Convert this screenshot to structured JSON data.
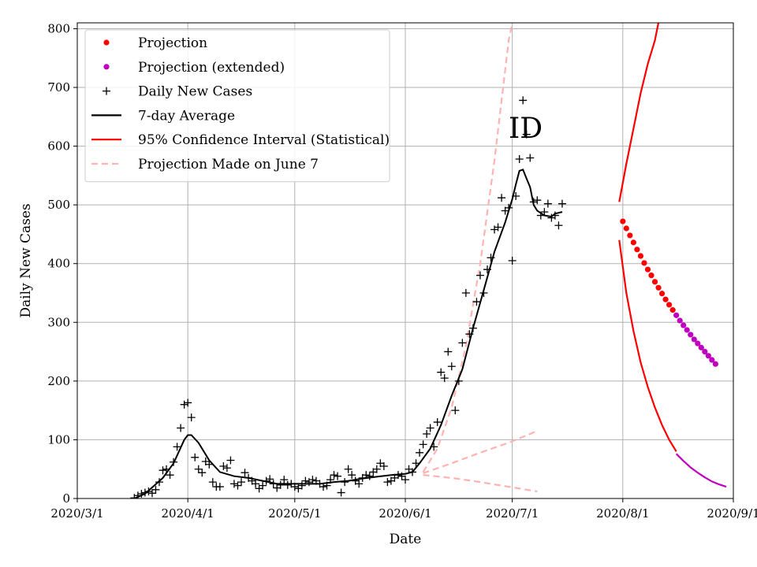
{
  "chart_data": {
    "type": "scatter",
    "title": "",
    "xlabel": "Date",
    "ylabel": "Daily New Cases",
    "annotation": "ID",
    "grid": true,
    "legend_placement": "top-left",
    "xlim": [
      "2020/3/1",
      "2020/9/1"
    ],
    "ylim": [
      0,
      810
    ],
    "x_ticks": [
      "2020/3/1",
      "2020/4/1",
      "2020/5/1",
      "2020/6/1",
      "2020/7/1",
      "2020/8/1",
      "2020/9/1"
    ],
    "y_ticks": [
      0,
      100,
      200,
      300,
      400,
      500,
      600,
      700,
      800
    ],
    "colors": {
      "projection": "#ff0000",
      "projection_extended": "#bf00bf",
      "daily": "#000000",
      "average": "#000000",
      "ci": "#ff0000",
      "june7": "#ffb2b2"
    },
    "legend": [
      {
        "label": "Projection",
        "kind": "dot",
        "color": "#ff0000"
      },
      {
        "label": "Projection (extended)",
        "kind": "dot",
        "color": "#bf00bf"
      },
      {
        "label": "Daily New Cases",
        "kind": "plus",
        "color": "#000000"
      },
      {
        "label": "7-day Average",
        "kind": "line",
        "color": "#000000"
      },
      {
        "label": "95% Confidence Interval (Statistical)",
        "kind": "line",
        "color": "#ff0000"
      },
      {
        "label": "Projection Made on June 7",
        "kind": "dash",
        "color": "#ffb2b2"
      }
    ],
    "series": [
      {
        "name": "Daily New Cases",
        "points": [
          [
            "2020-03-17",
            1
          ],
          [
            "2020-03-18",
            5
          ],
          [
            "2020-03-19",
            8
          ],
          [
            "2020-03-20",
            10
          ],
          [
            "2020-03-21",
            12
          ],
          [
            "2020-03-22",
            9
          ],
          [
            "2020-03-23",
            15
          ],
          [
            "2020-03-24",
            28
          ],
          [
            "2020-03-25",
            48
          ],
          [
            "2020-03-26",
            50
          ],
          [
            "2020-03-27",
            40
          ],
          [
            "2020-03-28",
            62
          ],
          [
            "2020-03-29",
            88
          ],
          [
            "2020-03-30",
            120
          ],
          [
            "2020-03-31",
            160
          ],
          [
            "2020-04-01",
            163
          ],
          [
            "2020-04-02",
            138
          ],
          [
            "2020-04-03",
            70
          ],
          [
            "2020-04-04",
            50
          ],
          [
            "2020-04-05",
            44
          ],
          [
            "2020-04-06",
            63
          ],
          [
            "2020-04-07",
            58
          ],
          [
            "2020-04-08",
            28
          ],
          [
            "2020-04-09",
            20
          ],
          [
            "2020-04-10",
            20
          ],
          [
            "2020-04-11",
            55
          ],
          [
            "2020-04-12",
            52
          ],
          [
            "2020-04-13",
            65
          ],
          [
            "2020-04-14",
            25
          ],
          [
            "2020-04-15",
            22
          ],
          [
            "2020-04-16",
            28
          ],
          [
            "2020-04-17",
            44
          ],
          [
            "2020-04-18",
            35
          ],
          [
            "2020-04-19",
            30
          ],
          [
            "2020-04-20",
            25
          ],
          [
            "2020-04-21",
            17
          ],
          [
            "2020-04-22",
            22
          ],
          [
            "2020-04-23",
            30
          ],
          [
            "2020-04-24",
            33
          ],
          [
            "2020-04-25",
            25
          ],
          [
            "2020-04-26",
            18
          ],
          [
            "2020-04-27",
            23
          ],
          [
            "2020-04-28",
            32
          ],
          [
            "2020-04-29",
            23
          ],
          [
            "2020-04-30",
            25
          ],
          [
            "2020-05-01",
            20
          ],
          [
            "2020-05-02",
            17
          ],
          [
            "2020-05-03",
            22
          ],
          [
            "2020-05-04",
            30
          ],
          [
            "2020-05-05",
            28
          ],
          [
            "2020-05-06",
            32
          ],
          [
            "2020-05-07",
            30
          ],
          [
            "2020-05-08",
            25
          ],
          [
            "2020-05-09",
            20
          ],
          [
            "2020-05-10",
            22
          ],
          [
            "2020-05-11",
            32
          ],
          [
            "2020-05-12",
            40
          ],
          [
            "2020-05-13",
            38
          ],
          [
            "2020-05-14",
            10
          ],
          [
            "2020-05-15",
            28
          ],
          [
            "2020-05-16",
            50
          ],
          [
            "2020-05-17",
            40
          ],
          [
            "2020-05-18",
            30
          ],
          [
            "2020-05-19",
            25
          ],
          [
            "2020-05-20",
            35
          ],
          [
            "2020-05-21",
            40
          ],
          [
            "2020-05-22",
            38
          ],
          [
            "2020-05-23",
            45
          ],
          [
            "2020-05-24",
            50
          ],
          [
            "2020-05-25",
            60
          ],
          [
            "2020-05-26",
            55
          ],
          [
            "2020-05-27",
            28
          ],
          [
            "2020-05-28",
            30
          ],
          [
            "2020-05-29",
            35
          ],
          [
            "2020-05-30",
            40
          ],
          [
            "2020-05-31",
            38
          ],
          [
            "2020-06-01",
            32
          ],
          [
            "2020-06-02",
            50
          ],
          [
            "2020-06-03",
            45
          ],
          [
            "2020-06-04",
            60
          ],
          [
            "2020-06-05",
            78
          ],
          [
            "2020-06-06",
            92
          ],
          [
            "2020-06-07",
            110
          ],
          [
            "2020-06-08",
            120
          ],
          [
            "2020-06-09",
            88
          ],
          [
            "2020-06-10",
            130
          ],
          [
            "2020-06-11",
            215
          ],
          [
            "2020-06-12",
            205
          ],
          [
            "2020-06-13",
            250
          ],
          [
            "2020-06-14",
            225
          ],
          [
            "2020-06-15",
            150
          ],
          [
            "2020-06-16",
            200
          ],
          [
            "2020-06-17",
            265
          ],
          [
            "2020-06-18",
            350
          ],
          [
            "2020-06-19",
            280
          ],
          [
            "2020-06-20",
            290
          ],
          [
            "2020-06-21",
            335
          ],
          [
            "2020-06-22",
            380
          ],
          [
            "2020-06-23",
            350
          ],
          [
            "2020-06-24",
            390
          ],
          [
            "2020-06-25",
            410
          ],
          [
            "2020-06-26",
            458
          ],
          [
            "2020-06-27",
            462
          ],
          [
            "2020-06-28",
            512
          ],
          [
            "2020-06-29",
            490
          ],
          [
            "2020-06-30",
            495
          ],
          [
            "2020-07-01",
            405
          ],
          [
            "2020-07-02",
            515
          ],
          [
            "2020-07-03",
            578
          ],
          [
            "2020-07-04",
            678
          ],
          [
            "2020-07-05",
            620
          ],
          [
            "2020-07-06",
            580
          ],
          [
            "2020-07-07",
            505
          ],
          [
            "2020-07-08",
            508
          ],
          [
            "2020-07-09",
            482
          ],
          [
            "2020-07-10",
            488
          ],
          [
            "2020-07-11",
            502
          ],
          [
            "2020-07-12",
            478
          ],
          [
            "2020-07-13",
            482
          ],
          [
            "2020-07-14",
            465
          ],
          [
            "2020-07-15",
            502
          ]
        ]
      },
      {
        "name": "7-day Average",
        "points": [
          [
            "2020-03-17",
            0
          ],
          [
            "2020-03-20",
            8
          ],
          [
            "2020-03-25",
            35
          ],
          [
            "2020-03-28",
            60
          ],
          [
            "2020-03-31",
            100
          ],
          [
            "2020-04-01",
            108
          ],
          [
            "2020-04-02",
            108
          ],
          [
            "2020-04-04",
            95
          ],
          [
            "2020-04-07",
            65
          ],
          [
            "2020-04-10",
            45
          ],
          [
            "2020-04-14",
            38
          ],
          [
            "2020-04-18",
            35
          ],
          [
            "2020-04-22",
            30
          ],
          [
            "2020-04-26",
            25
          ],
          [
            "2020-04-30",
            25
          ],
          [
            "2020-05-04",
            25
          ],
          [
            "2020-05-08",
            25
          ],
          [
            "2020-05-12",
            28
          ],
          [
            "2020-05-16",
            30
          ],
          [
            "2020-05-20",
            34
          ],
          [
            "2020-05-24",
            37
          ],
          [
            "2020-05-28",
            40
          ],
          [
            "2020-06-01",
            42
          ],
          [
            "2020-06-03",
            45
          ],
          [
            "2020-06-05",
            60
          ],
          [
            "2020-06-08",
            85
          ],
          [
            "2020-06-11",
            125
          ],
          [
            "2020-06-14",
            175
          ],
          [
            "2020-06-17",
            220
          ],
          [
            "2020-06-20",
            290
          ],
          [
            "2020-06-23",
            355
          ],
          [
            "2020-06-26",
            420
          ],
          [
            "2020-06-29",
            470
          ],
          [
            "2020-07-01",
            510
          ],
          [
            "2020-07-02",
            535
          ],
          [
            "2020-07-03",
            558
          ],
          [
            "2020-07-04",
            560
          ],
          [
            "2020-07-05",
            545
          ],
          [
            "2020-07-06",
            530
          ],
          [
            "2020-07-07",
            500
          ],
          [
            "2020-07-08",
            490
          ],
          [
            "2020-07-10",
            482
          ],
          [
            "2020-07-12",
            480
          ],
          [
            "2020-07-13",
            485
          ],
          [
            "2020-07-15",
            488
          ]
        ]
      },
      {
        "name": "Projection",
        "points": [
          [
            "2020-08-01",
            472
          ],
          [
            "2020-08-02",
            460
          ],
          [
            "2020-08-03",
            448
          ],
          [
            "2020-08-04",
            436
          ],
          [
            "2020-08-05",
            424
          ],
          [
            "2020-08-06",
            413
          ],
          [
            "2020-08-07",
            401
          ],
          [
            "2020-08-08",
            390
          ],
          [
            "2020-08-09",
            380
          ],
          [
            "2020-08-10",
            369
          ],
          [
            "2020-08-11",
            359
          ],
          [
            "2020-08-12",
            349
          ],
          [
            "2020-08-13",
            339
          ],
          [
            "2020-08-14",
            330
          ],
          [
            "2020-08-15",
            321
          ]
        ]
      },
      {
        "name": "Projection (extended)",
        "points": [
          [
            "2020-08-16",
            312
          ],
          [
            "2020-08-17",
            303
          ],
          [
            "2020-08-18",
            295
          ],
          [
            "2020-08-19",
            287
          ],
          [
            "2020-08-20",
            279
          ],
          [
            "2020-08-21",
            271
          ],
          [
            "2020-08-22",
            264
          ],
          [
            "2020-08-23",
            257
          ],
          [
            "2020-08-24",
            250
          ],
          [
            "2020-08-25",
            243
          ],
          [
            "2020-08-26",
            236
          ],
          [
            "2020-08-27",
            229
          ]
        ]
      },
      {
        "name": "95% Confidence Interval (Statistical)",
        "upper": [
          [
            "2020-07-31",
            505
          ],
          [
            "2020-08-02",
            570
          ],
          [
            "2020-08-04",
            630
          ],
          [
            "2020-08-06",
            690
          ],
          [
            "2020-08-08",
            740
          ],
          [
            "2020-08-10",
            780
          ],
          [
            "2020-08-11",
            810
          ]
        ],
        "lower": [
          [
            "2020-07-31",
            440
          ],
          [
            "2020-08-02",
            350
          ],
          [
            "2020-08-04",
            285
          ],
          [
            "2020-08-06",
            232
          ],
          [
            "2020-08-08",
            190
          ],
          [
            "2020-08-10",
            155
          ],
          [
            "2020-08-12",
            125
          ],
          [
            "2020-08-14",
            100
          ],
          [
            "2020-08-16",
            80
          ]
        ],
        "lower_extended": [
          [
            "2020-08-16",
            76
          ],
          [
            "2020-08-18",
            64
          ],
          [
            "2020-08-20",
            53
          ],
          [
            "2020-08-22",
            44
          ],
          [
            "2020-08-24",
            36
          ],
          [
            "2020-08-26",
            29
          ],
          [
            "2020-08-28",
            24
          ],
          [
            "2020-08-30",
            20
          ]
        ]
      },
      {
        "name": "Projection Made on June 7",
        "upper": [
          [
            "2020-06-06",
            45
          ],
          [
            "2020-06-10",
            85
          ],
          [
            "2020-06-14",
            155
          ],
          [
            "2020-06-18",
            260
          ],
          [
            "2020-06-22",
            400
          ],
          [
            "2020-06-26",
            575
          ],
          [
            "2020-06-30",
            780
          ],
          [
            "2020-07-01",
            810
          ]
        ],
        "middle": [
          [
            "2020-06-06",
            43
          ],
          [
            "2020-06-14",
            60
          ],
          [
            "2020-06-22",
            78
          ],
          [
            "2020-06-30",
            95
          ],
          [
            "2020-07-08",
            115
          ]
        ],
        "lower": [
          [
            "2020-06-06",
            40
          ],
          [
            "2020-06-14",
            35
          ],
          [
            "2020-06-22",
            28
          ],
          [
            "2020-06-30",
            20
          ],
          [
            "2020-07-08",
            12
          ]
        ]
      }
    ]
  }
}
